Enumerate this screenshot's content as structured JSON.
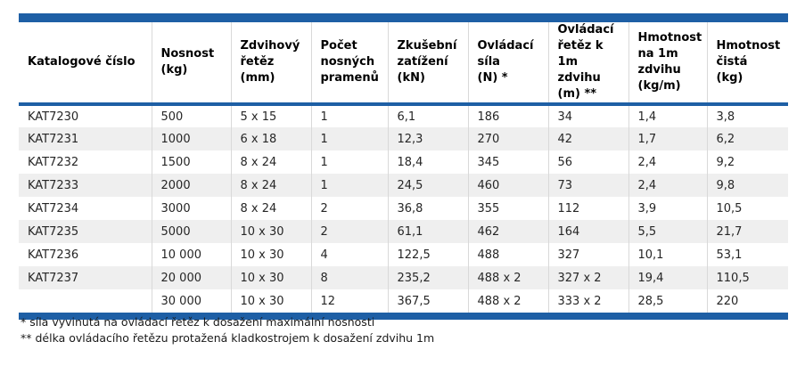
{
  "table": {
    "columns": [
      "Katalogové číslo",
      "Nosnost\n(kg)",
      "Zdvihový\nřetěz\n(mm)",
      "Počet\nnosných\npramenů",
      "Zkušební\nzatížení\n(kN)",
      "Ovládací\nsíla\n(N) *",
      "Ovládací\nřetěz k\n1m zdvihu\n(m) **",
      "Hmotnost\nna 1m\nzdvihu\n(kg/m)",
      "Hmotnost\nčistá\n(kg)"
    ],
    "rows": [
      [
        "KAT7230",
        "500",
        "5 x 15",
        "1",
        "6,1",
        "186",
        "34",
        "1,4",
        "3,8"
      ],
      [
        "KAT7231",
        "1000",
        "6 x 18",
        "1",
        "12,3",
        "270",
        "42",
        "1,7",
        "6,2"
      ],
      [
        "KAT7232",
        "1500",
        "8 x 24",
        "1",
        "18,4",
        "345",
        "56",
        "2,4",
        "9,2"
      ],
      [
        "KAT7233",
        "2000",
        "8 x 24",
        "1",
        "24,5",
        "460",
        "73",
        "2,4",
        "9,8"
      ],
      [
        "KAT7234",
        "3000",
        "8 x 24",
        "2",
        "36,8",
        "355",
        "112",
        "3,9",
        "10,5"
      ],
      [
        "KAT7235",
        "5000",
        "10 x 30",
        "2",
        "61,1",
        "462",
        "164",
        "5,5",
        "21,7"
      ],
      [
        "KAT7236",
        "10 000",
        "10 x 30",
        "4",
        "122,5",
        "488",
        "327",
        "10,1",
        "53,1"
      ],
      [
        "KAT7237",
        "20 000",
        "10 x 30",
        "8",
        "235,2",
        "488 x 2",
        "327 x 2",
        "19,4",
        "110,5"
      ],
      [
        "",
        "30 000",
        "10 x 30",
        "12",
        "367,5",
        "488 x 2",
        "333 x 2",
        "28,5",
        "220"
      ]
    ]
  },
  "footnotes": [
    "* síla vyvinutá na ovládací řetěz k dosažení maximální nosnosti",
    "** délka ovládacího řetězu protažená kladkostrojem k dosažení zdvihu 1m"
  ],
  "colors": {
    "accent_blue": "#1E5FA5",
    "row_stripe": "#EFEFEF",
    "cell_separator": "#D9D9D9"
  }
}
